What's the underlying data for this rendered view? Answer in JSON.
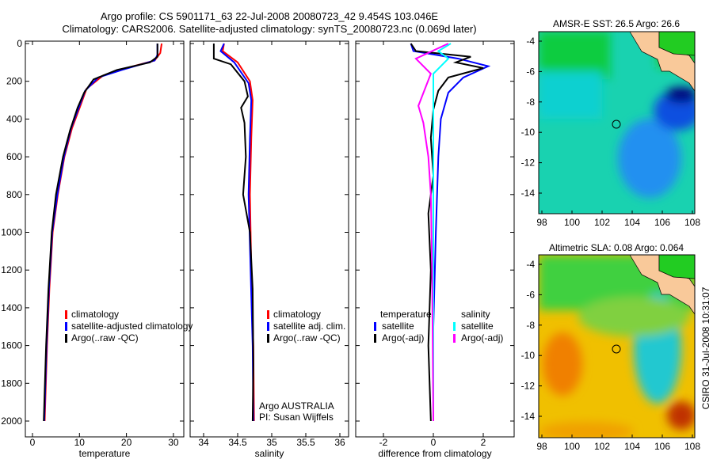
{
  "title_line1": "Argo profile: CS 5901171_63 22-Jul-2008 20080723_42 9.454S 103.046E",
  "title_line2": "Climatology: CARS2006. Satellite-adjusted climatology: synTS_20080723.nc (0.069d later)",
  "side_label": "CSIRO 31-Jul-2008 10:31:07",
  "colors": {
    "clim": "#ff0000",
    "sat": "#0000ff",
    "argo": "#000000",
    "sal_sat": "#00ffff",
    "sal_argo": "#ff00ff",
    "land": "#f9c99a"
  },
  "chart_data": [
    {
      "type": "line",
      "xlabel": "temperature",
      "ylabel": "",
      "xlim": [
        -1,
        31
      ],
      "ylim": [
        2050,
        0
      ],
      "xticks": [
        "0",
        "10",
        "20",
        "30"
      ],
      "yticks": [
        "0",
        "200",
        "400",
        "600",
        "800",
        "1000",
        "1200",
        "1400",
        "1600",
        "1800",
        "2000"
      ],
      "legend": [
        "climatology",
        "satellite-adjusted climatology",
        "Argo(..raw -QC)"
      ],
      "series": [
        {
          "name": "climatology",
          "color": "#ff0000",
          "points": [
            [
              27.5,
              0
            ],
            [
              27.2,
              50
            ],
            [
              26,
              90
            ],
            [
              20,
              130
            ],
            [
              15,
              170
            ],
            [
              11.5,
              240
            ],
            [
              10.2,
              330
            ],
            [
              8.4,
              450
            ],
            [
              6.8,
              600
            ],
            [
              5.4,
              800
            ],
            [
              4.3,
              1000
            ],
            [
              3.6,
              1300
            ],
            [
              3.1,
              1600
            ],
            [
              2.6,
              2000
            ]
          ]
        },
        {
          "name": "satellite",
          "color": "#0000ff",
          "points": [
            [
              26.6,
              0
            ],
            [
              26.6,
              60
            ],
            [
              26,
              90
            ],
            [
              19,
              140
            ],
            [
              14,
              180
            ],
            [
              11.2,
              250
            ],
            [
              10,
              330
            ],
            [
              8.2,
              450
            ],
            [
              6.7,
              600
            ],
            [
              5.3,
              800
            ],
            [
              4.2,
              1000
            ],
            [
              3.5,
              1300
            ],
            [
              3,
              1600
            ],
            [
              2.5,
              2000
            ]
          ]
        },
        {
          "name": "Argo",
          "color": "#000000",
          "points": [
            [
              26.6,
              0
            ],
            [
              26.6,
              70
            ],
            [
              25,
              100
            ],
            [
              18,
              140
            ],
            [
              13,
              190
            ],
            [
              11,
              260
            ],
            [
              9.6,
              340
            ],
            [
              8,
              460
            ],
            [
              6.5,
              600
            ],
            [
              5,
              800
            ],
            [
              4.1,
              1000
            ],
            [
              3.4,
              1300
            ],
            [
              2.9,
              1600
            ],
            [
              2.4,
              2000
            ]
          ]
        }
      ]
    },
    {
      "type": "line",
      "xlabel": "salinity",
      "xlim": [
        33.9,
        36.1
      ],
      "ylim": [
        2050,
        0
      ],
      "xticks": [
        "34",
        "34.5",
        "35",
        "35.5",
        "36"
      ],
      "legend": [
        "climatology",
        "satellite adj. clim.",
        "Argo(..raw -QC)"
      ],
      "annotations": [
        "Argo AUSTRALIA",
        "PI: Susan Wijffels"
      ],
      "series": [
        {
          "name": "climatology",
          "color": "#ff0000",
          "points": [
            [
              34.3,
              0
            ],
            [
              34.28,
              40
            ],
            [
              34.5,
              100
            ],
            [
              34.68,
              200
            ],
            [
              34.72,
              300
            ],
            [
              34.7,
              500
            ],
            [
              34.68,
              800
            ],
            [
              34.7,
              1200
            ],
            [
              34.73,
              1600
            ],
            [
              34.74,
              2000
            ]
          ]
        },
        {
          "name": "satellite",
          "color": "#0000ff",
          "points": [
            [
              34.3,
              0
            ],
            [
              34.25,
              40
            ],
            [
              34.45,
              100
            ],
            [
              34.66,
              210
            ],
            [
              34.7,
              300
            ],
            [
              34.68,
              500
            ],
            [
              34.66,
              800
            ],
            [
              34.69,
              1200
            ],
            [
              34.72,
              1600
            ],
            [
              34.73,
              2000
            ]
          ]
        },
        {
          "name": "Argo",
          "color": "#000000",
          "points": [
            [
              34.15,
              0
            ],
            [
              34.15,
              80
            ],
            [
              34.4,
              110
            ],
            [
              34.6,
              200
            ],
            [
              34.65,
              280
            ],
            [
              34.55,
              340
            ],
            [
              34.6,
              420
            ],
            [
              34.62,
              600
            ],
            [
              34.58,
              800
            ],
            [
              34.68,
              1000
            ],
            [
              34.72,
              1300
            ],
            [
              34.73,
              1700
            ],
            [
              34.72,
              2000
            ]
          ]
        }
      ]
    },
    {
      "type": "line",
      "xlabel": "difference from climatology",
      "xlim": [
        -3.1,
        3.1
      ],
      "ylim": [
        2050,
        0
      ],
      "xticks": [
        "-2",
        "0",
        "2"
      ],
      "legend": [
        "temperature",
        "satellite",
        "Argo(-adj)",
        "salinity",
        "satellite",
        "Argo(-adj)"
      ],
      "series": [
        {
          "name": "temperature satellite",
          "color": "#0000ff",
          "points": [
            [
              -0.9,
              0
            ],
            [
              -0.8,
              40
            ],
            [
              1,
              80
            ],
            [
              2.2,
              120
            ],
            [
              1.2,
              180
            ],
            [
              0.6,
              260
            ],
            [
              0.3,
              400
            ],
            [
              0.2,
              600
            ],
            [
              0.1,
              1000
            ],
            [
              0,
              1500
            ],
            [
              0,
              2000
            ]
          ]
        },
        {
          "name": "temperature Argo(-adj)",
          "color": "#000000",
          "points": [
            [
              -0.9,
              0
            ],
            [
              -0.7,
              40
            ],
            [
              1.5,
              70
            ],
            [
              0.9,
              100
            ],
            [
              2,
              130
            ],
            [
              0.6,
              180
            ],
            [
              0.2,
              250
            ],
            [
              0,
              350
            ],
            [
              -0.1,
              500
            ],
            [
              0,
              700
            ],
            [
              -0.2,
              900
            ],
            [
              -0.1,
              1200
            ],
            [
              -0.2,
              1600
            ],
            [
              -0.1,
              2000
            ]
          ]
        },
        {
          "name": "salinity satellite",
          "color": "#00ffff",
          "points": [
            [
              0.7,
              0
            ],
            [
              0.2,
              40
            ],
            [
              0.6,
              80
            ],
            [
              0,
              160
            ],
            [
              0,
              400
            ],
            [
              0,
              1000
            ],
            [
              0,
              2000
            ]
          ]
        },
        {
          "name": "salinity Argo(-adj)",
          "color": "#ff00ff",
          "points": [
            [
              0.6,
              0
            ],
            [
              -0.7,
              80
            ],
            [
              -0.1,
              160
            ],
            [
              -0.6,
              330
            ],
            [
              -0.4,
              420
            ],
            [
              -0.2,
              600
            ],
            [
              -0.1,
              800
            ],
            [
              -0.05,
              1200
            ],
            [
              0,
              2000
            ]
          ]
        }
      ]
    },
    {
      "type": "heatmap",
      "title": "AMSR-E SST: 26.5 Argo: 26.6",
      "xticks": [
        "98",
        "100",
        "102",
        "104",
        "106",
        "108"
      ],
      "yticks": [
        "-4",
        "-6",
        "-8",
        "-10",
        "-12",
        "-14"
      ],
      "marker": [
        103.046,
        -9.454
      ]
    },
    {
      "type": "heatmap",
      "title": "Altimetric SLA: 0.08 Argo: 0.064",
      "xticks": [
        "98",
        "100",
        "102",
        "104",
        "106",
        "108"
      ],
      "yticks": [
        "-4",
        "-6",
        "-8",
        "-10",
        "-12",
        "-14"
      ],
      "marker": [
        103.046,
        -9.454
      ]
    }
  ]
}
